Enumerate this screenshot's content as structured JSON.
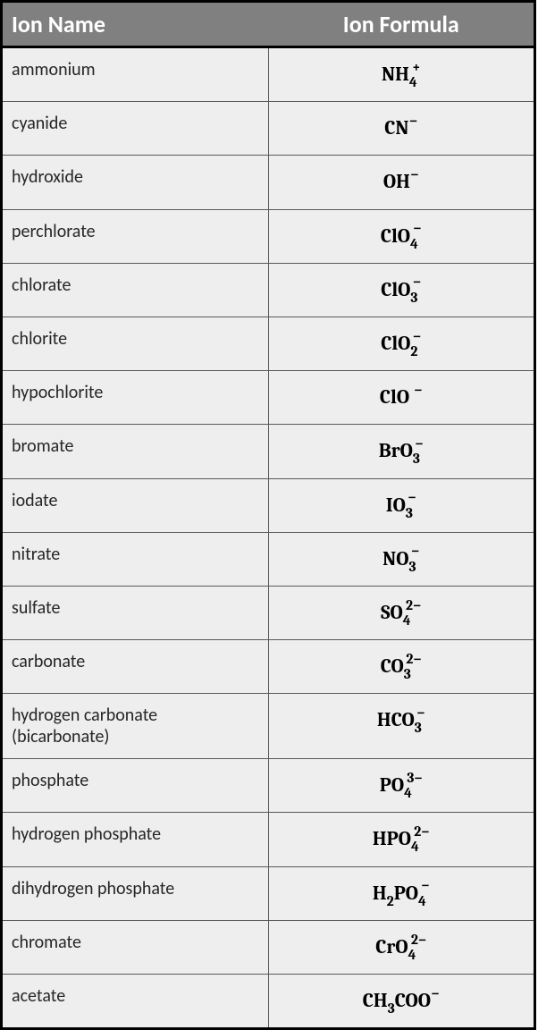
{
  "table": {
    "header_background": "#808080",
    "header_text_color": "#ffffff",
    "header_fontsize": 26,
    "cell_background": "#eeeeee",
    "cell_border_color": "#595959",
    "outer_border_color": "#000000",
    "name_color": "#262626",
    "formula_color": "#000000",
    "name_fontsize": 20,
    "formula_fontsize": 22,
    "columns": [
      "Ion Name",
      "Ion Formula"
    ],
    "rows": [
      {
        "name": "ammonium",
        "formula_parts": [
          [
            "t",
            "NH"
          ],
          [
            "sub",
            "4"
          ],
          [
            "sup",
            "+"
          ]
        ]
      },
      {
        "name": "cyanide",
        "formula_parts": [
          [
            "t",
            "CN"
          ],
          [
            "supp",
            "−"
          ]
        ]
      },
      {
        "name": "hydroxide",
        "formula_parts": [
          [
            "t",
            "OH"
          ],
          [
            "supp",
            "−"
          ]
        ]
      },
      {
        "name": "perchlorate",
        "formula_parts": [
          [
            "t",
            "ClO"
          ],
          [
            "sub",
            "4"
          ],
          [
            "sup",
            "−"
          ]
        ]
      },
      {
        "name": "chlorate",
        "formula_parts": [
          [
            "t",
            "ClO"
          ],
          [
            "sub",
            "3"
          ],
          [
            "sup",
            "−"
          ]
        ]
      },
      {
        "name": "chlorite",
        "formula_parts": [
          [
            "t",
            "ClO"
          ],
          [
            "sub",
            "2"
          ],
          [
            "sup",
            "−"
          ]
        ]
      },
      {
        "name": "hypochlorite",
        "formula_parts": [
          [
            "t",
            "ClO "
          ],
          [
            "supp",
            "−"
          ]
        ]
      },
      {
        "name": "bromate",
        "formula_parts": [
          [
            "t",
            "BrO"
          ],
          [
            "sub",
            "3"
          ],
          [
            "sup",
            "−"
          ]
        ]
      },
      {
        "name": "iodate",
        "formula_parts": [
          [
            "t",
            "IO"
          ],
          [
            "sub",
            "3"
          ],
          [
            "sup",
            "−"
          ]
        ]
      },
      {
        "name": "nitrate",
        "formula_parts": [
          [
            "t",
            "NO"
          ],
          [
            "sub",
            "3"
          ],
          [
            "sup",
            "−"
          ]
        ]
      },
      {
        "name": "sulfate",
        "formula_parts": [
          [
            "t",
            "SO"
          ],
          [
            "sub",
            "4"
          ],
          [
            "sup",
            "2−"
          ]
        ]
      },
      {
        "name": "carbonate",
        "formula_parts": [
          [
            "t",
            "CO"
          ],
          [
            "sub",
            "3"
          ],
          [
            "sup",
            "2−"
          ]
        ]
      },
      {
        "name": "hydrogen carbonate (bicarbonate)",
        "formula_parts": [
          [
            "t",
            "HCO"
          ],
          [
            "sub",
            "3"
          ],
          [
            "sup",
            "−"
          ]
        ]
      },
      {
        "name": "phosphate",
        "formula_parts": [
          [
            "t",
            "PO"
          ],
          [
            "sub",
            "4"
          ],
          [
            "sup",
            "3−"
          ]
        ]
      },
      {
        "name": "hydrogen phosphate",
        "formula_parts": [
          [
            "t",
            "HPO"
          ],
          [
            "sub",
            "4"
          ],
          [
            "sup",
            "2−"
          ]
        ]
      },
      {
        "name": "dihydrogen phosphate",
        "formula_parts": [
          [
            "t",
            "H"
          ],
          [
            "sub",
            "2"
          ],
          [
            "t",
            "PO"
          ],
          [
            "sub",
            "4"
          ],
          [
            "sup",
            "−"
          ]
        ]
      },
      {
        "name": "chromate",
        "formula_parts": [
          [
            "t",
            "CrO"
          ],
          [
            "sub",
            "4"
          ],
          [
            "sup",
            "2−"
          ]
        ]
      },
      {
        "name": "acetate",
        "formula_parts": [
          [
            "t",
            "CH"
          ],
          [
            "sub",
            "3"
          ],
          [
            "t",
            "COO"
          ],
          [
            "supp",
            "−"
          ]
        ]
      }
    ]
  }
}
